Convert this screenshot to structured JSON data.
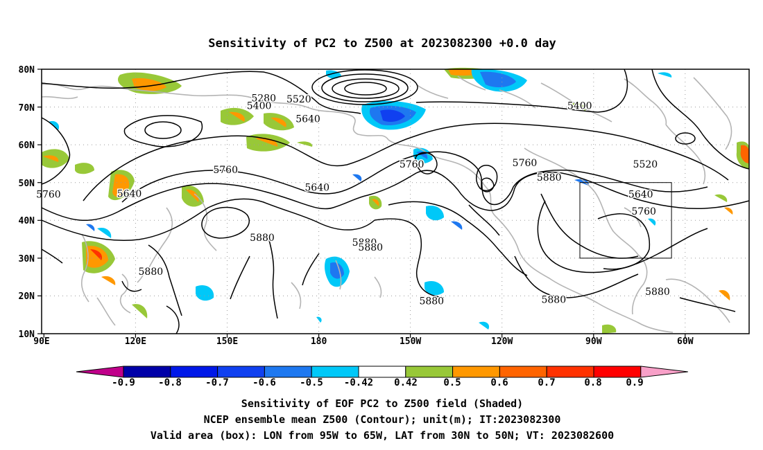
{
  "title": "Sensitivity of PC2 to Z500 at 2023082300 +0.0 day",
  "lat_labels": [
    "80N",
    "70N",
    "60N",
    "50N",
    "40N",
    "30N",
    "20N",
    "10N"
  ],
  "lon_labels": [
    "90E",
    "120E",
    "150E",
    "180",
    "150W",
    "120W",
    "90W",
    "60W"
  ],
  "colorbar": {
    "labels": [
      "-0.9",
      "-0.8",
      "-0.7",
      "-0.6",
      "-0.5",
      "-0.42",
      "0.42",
      "0.5",
      "0.6",
      "0.7",
      "0.8",
      "0.9"
    ],
    "colors": [
      "#c0008a",
      "#0000a8",
      "#0018e8",
      "#1040f0",
      "#1e78f0",
      "#00c8f8",
      "#ffffff",
      "#98c838",
      "#ff9800",
      "#ff6400",
      "#ff3200",
      "#ff0000",
      "#f8a0c8"
    ]
  },
  "contour_labels": [
    {
      "text": "5280",
      "lon": 162,
      "lat": 71.5
    },
    {
      "text": "5400",
      "lon": 160.5,
      "lat": 69.5
    },
    {
      "text": "5520",
      "lon": 173.5,
      "lat": 71.2
    },
    {
      "text": "5640",
      "lon": 176.5,
      "lat": 66
    },
    {
      "text": "5400",
      "lon": 265.5,
      "lat": 69.5
    },
    {
      "text": "5760",
      "lon": 91.5,
      "lat": 46
    },
    {
      "text": "5640",
      "lon": 118,
      "lat": 46.2
    },
    {
      "text": "5760",
      "lon": 149.5,
      "lat": 52.5
    },
    {
      "text": "5640",
      "lon": 179.5,
      "lat": 47.8
    },
    {
      "text": "5760",
      "lon": 210.5,
      "lat": 54
    },
    {
      "text": "5760",
      "lon": 247.5,
      "lat": 54.3
    },
    {
      "text": "5880",
      "lon": 255.5,
      "lat": 50.5
    },
    {
      "text": "5520",
      "lon": 287,
      "lat": 54
    },
    {
      "text": "5640",
      "lon": 285.5,
      "lat": 46
    },
    {
      "text": "5760",
      "lon": 286.5,
      "lat": 41.5
    },
    {
      "text": "5880",
      "lon": 161.5,
      "lat": 34.6
    },
    {
      "text": "5880",
      "lon": 195,
      "lat": 33.3
    },
    {
      "text": "5880",
      "lon": 197,
      "lat": 32
    },
    {
      "text": "5880",
      "lon": 125,
      "lat": 25.6
    },
    {
      "text": "5880",
      "lon": 217,
      "lat": 17.8
    },
    {
      "text": "5880",
      "lon": 257,
      "lat": 18.2
    },
    {
      "text": "5880",
      "lon": 291,
      "lat": 20.3
    }
  ],
  "footer": {
    "line1": "Sensitivity of EOF PC2 to Z500 field (Shaded)",
    "line2": "NCEP ensemble mean Z500 (Contour); unit(m); IT:2023082300",
    "line3": "Valid area (box): LON from 95W to 65W, LAT from 30N to 50N; VT: 2023082600"
  },
  "valid_box": {
    "lon_west": -95,
    "lon_east": -65,
    "lat_south": 30,
    "lat_north": 50
  }
}
